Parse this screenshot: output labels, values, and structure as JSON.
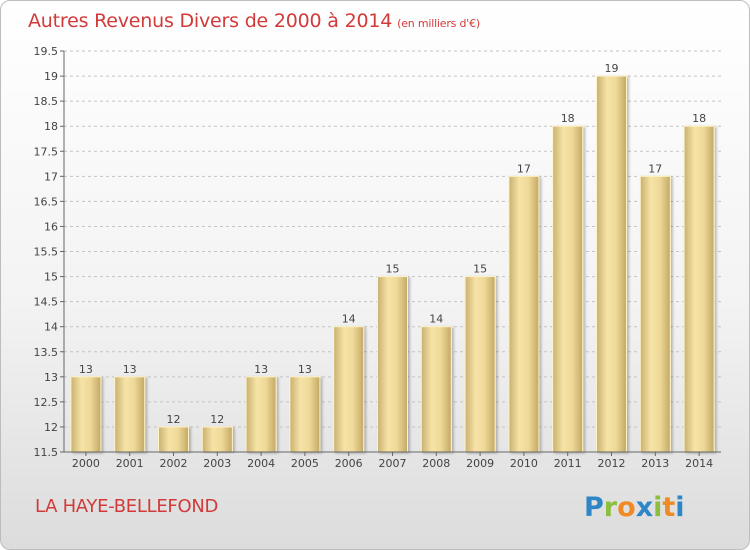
{
  "header": {
    "title": "Autres Revenus Divers de 2000 à 2014",
    "subtitle": "(en milliers d'€)"
  },
  "footer": {
    "commune": "LA HAYE-BELLEFOND",
    "logo_text": "Proxiti"
  },
  "colors": {
    "title": "#d23a3a",
    "bar_light": "#f6e3a6",
    "bar_dark": "#c7ad6d",
    "grid": "#bdbdbd"
  },
  "chart_data": {
    "type": "bar",
    "categories": [
      "2000",
      "2001",
      "2002",
      "2003",
      "2004",
      "2005",
      "2006",
      "2007",
      "2008",
      "2009",
      "2010",
      "2011",
      "2012",
      "2013",
      "2014"
    ],
    "values": [
      13,
      13,
      12,
      12,
      13,
      13,
      14,
      15,
      14,
      15,
      17,
      18,
      19,
      17,
      18
    ],
    "ylim": [
      11.5,
      19.5
    ],
    "yticks": [
      11.5,
      12,
      12.5,
      13,
      13.5,
      14,
      14.5,
      15,
      15.5,
      16,
      16.5,
      17,
      17.5,
      18,
      18.5,
      19,
      19.5
    ],
    "grid": true
  }
}
